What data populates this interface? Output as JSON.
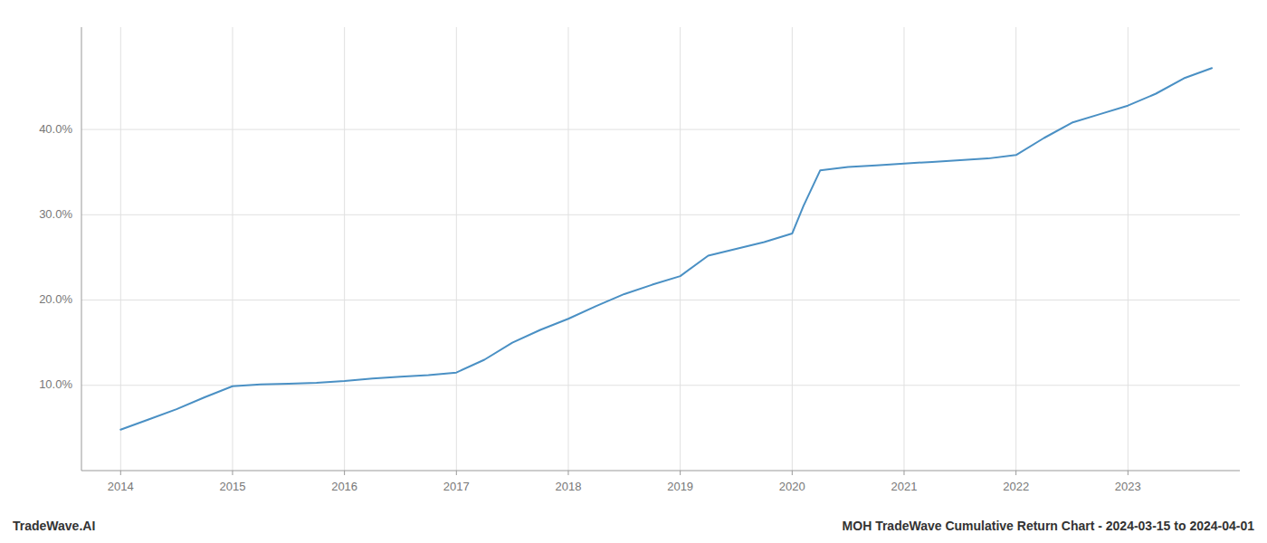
{
  "chart_data": {
    "type": "line",
    "title": "MOH TradeWave Cumulative Return Chart - 2024-03-15 to 2024-04-01",
    "annotations": [
      "TradeWave.AI"
    ],
    "color": "#4a90c4",
    "grid": true,
    "x": [
      2014.0,
      2014.25,
      2014.5,
      2014.75,
      2015.0,
      2015.25,
      2015.5,
      2015.75,
      2016.0,
      2016.25,
      2016.5,
      2016.75,
      2017.0,
      2017.25,
      2017.5,
      2017.75,
      2018.0,
      2018.25,
      2018.5,
      2018.75,
      2019.0,
      2019.25,
      2019.5,
      2019.75,
      2020.0,
      2020.1,
      2020.25,
      2020.5,
      2020.75,
      2021.0,
      2021.25,
      2021.5,
      2021.75,
      2022.0,
      2022.25,
      2022.5,
      2022.75,
      2023.0,
      2023.25,
      2023.5,
      2023.75
    ],
    "values": [
      0.048,
      0.06,
      0.072,
      0.086,
      0.099,
      0.101,
      0.102,
      0.103,
      0.105,
      0.108,
      0.11,
      0.112,
      0.115,
      0.13,
      0.15,
      0.165,
      0.178,
      0.193,
      0.207,
      0.218,
      0.228,
      0.252,
      0.26,
      0.268,
      0.278,
      0.31,
      0.352,
      0.356,
      0.358,
      0.36,
      0.362,
      0.364,
      0.366,
      0.37,
      0.39,
      0.408,
      0.418,
      0.428,
      0.442,
      0.46,
      0.472
    ],
    "xlim": [
      2013.65,
      2024.0
    ],
    "ylim": [
      0.0,
      0.52
    ],
    "xticks": [
      2014,
      2015,
      2016,
      2017,
      2018,
      2019,
      2020,
      2021,
      2022,
      2023
    ],
    "yticks": [
      {
        "value": 0.1,
        "label": "10.0%"
      },
      {
        "value": 0.2,
        "label": "20.0%"
      },
      {
        "value": 0.3,
        "label": "30.0%"
      },
      {
        "value": 0.4,
        "label": "40.0%"
      }
    ]
  }
}
